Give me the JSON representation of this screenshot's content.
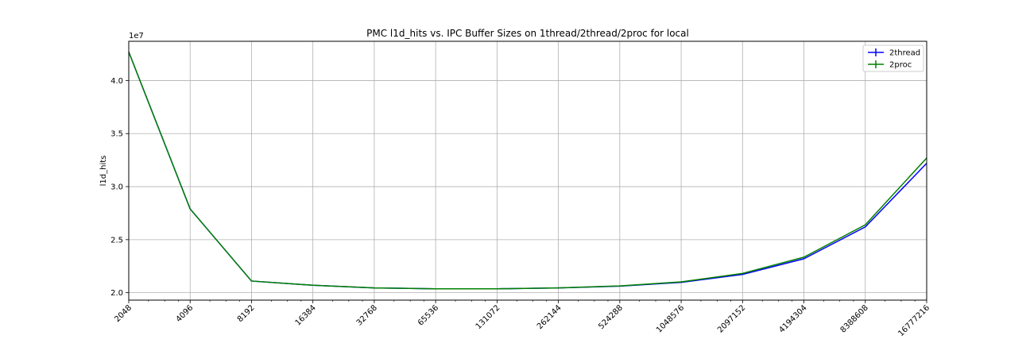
{
  "chart_data": {
    "type": "line",
    "title": "PMC l1d_hits vs. IPC Buffer Sizes on 1thread/2thread/2proc for local",
    "xlabel": "",
    "ylabel": "l1d_hits",
    "y_offset_label": "1e7",
    "x_scale": "log2",
    "x": [
      2048,
      4096,
      8192,
      16384,
      32768,
      65536,
      131072,
      262144,
      524288,
      1048576,
      2097152,
      4194304,
      8388608,
      16777216
    ],
    "x_tick_labels": [
      "2048",
      "4096",
      "8192",
      "16384",
      "32768",
      "65536",
      "131072",
      "262144",
      "524288",
      "1048576",
      "2097152",
      "4194304",
      "8388608",
      "16777216"
    ],
    "y_ticks": [
      2.0,
      2.5,
      3.0,
      3.5,
      4.0
    ],
    "y_tick_labels": [
      "2.0",
      "2.5",
      "3.0",
      "3.5",
      "4.0"
    ],
    "ylim": [
      1.93,
      4.37
    ],
    "grid": true,
    "legend_position": "top-right",
    "series": [
      {
        "name": "2thread",
        "color": "#0000ff",
        "values": [
          4.27,
          2.79,
          2.11,
          2.07,
          2.045,
          2.037,
          2.037,
          2.045,
          2.062,
          2.097,
          2.172,
          2.32,
          2.62,
          3.22
        ]
      },
      {
        "name": "2proc",
        "color": "#008000",
        "values": [
          4.27,
          2.79,
          2.11,
          2.07,
          2.045,
          2.037,
          2.037,
          2.045,
          2.064,
          2.102,
          2.182,
          2.335,
          2.64,
          3.27
        ]
      }
    ]
  }
}
